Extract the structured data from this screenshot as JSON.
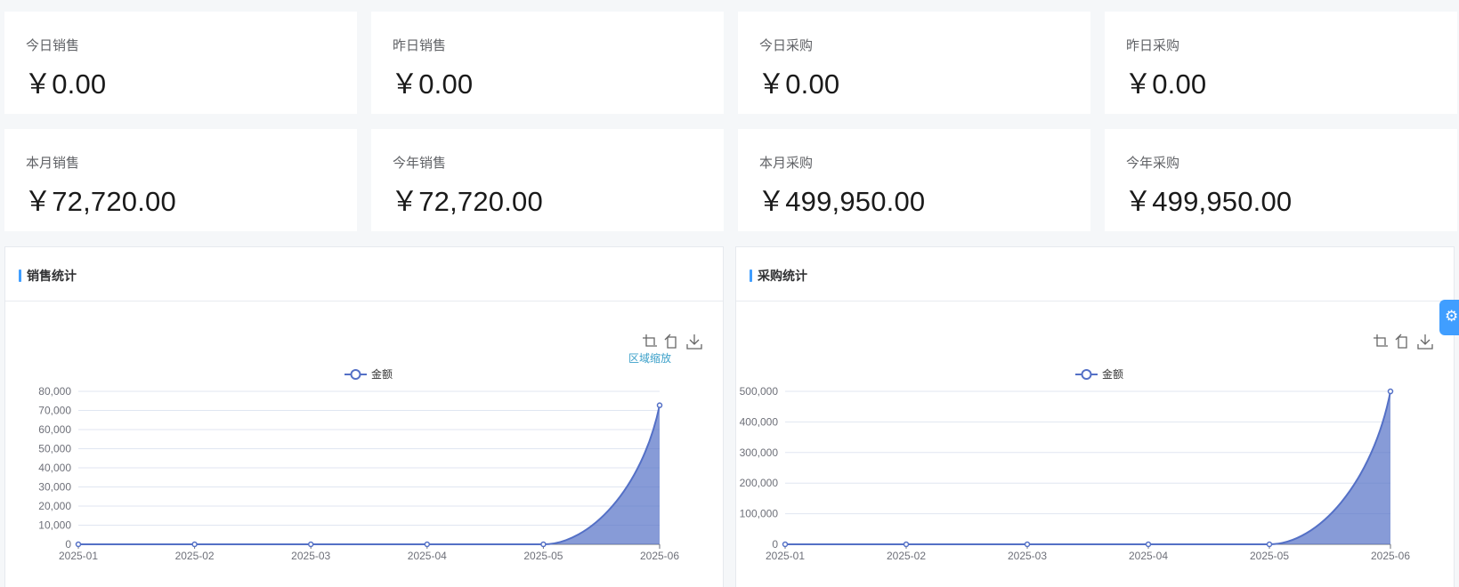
{
  "stats": [
    {
      "label": "今日销售",
      "value": "￥0.00"
    },
    {
      "label": "昨日销售",
      "value": "￥0.00"
    },
    {
      "label": "今日采购",
      "value": "￥0.00"
    },
    {
      "label": "昨日采购",
      "value": "￥0.00"
    },
    {
      "label": "本月销售",
      "value": "￥72,720.00"
    },
    {
      "label": "今年销售",
      "value": "￥72,720.00"
    },
    {
      "label": "本月采购",
      "value": "￥499,950.00"
    },
    {
      "label": "今年采购",
      "value": "￥499,950.00"
    }
  ],
  "sales_card": {
    "title": "销售统计"
  },
  "purchase_card": {
    "title": "采购统计"
  },
  "toolbox": {
    "zoom_label": "区域缩放",
    "icons": [
      "zoom-select-icon",
      "zoom-reset-icon",
      "save-image-icon"
    ]
  },
  "settings": {
    "icon": "gear-icon"
  },
  "colors": {
    "series": "#5470c6",
    "accent": "#409eff"
  },
  "chart_data": [
    {
      "type": "area",
      "title": "销售统计",
      "legend": [
        "金额"
      ],
      "categories": [
        "2025-01",
        "2025-02",
        "2025-03",
        "2025-04",
        "2025-05",
        "2025-06"
      ],
      "series": [
        {
          "name": "金额",
          "values": [
            0,
            0,
            0,
            0,
            0,
            72720
          ]
        }
      ],
      "yticks": [
        "0",
        "10,000",
        "20,000",
        "30,000",
        "40,000",
        "50,000",
        "60,000",
        "70,000",
        "80,000"
      ],
      "ylim": [
        0,
        80000
      ],
      "smooth": true,
      "grid": true
    },
    {
      "type": "area",
      "title": "采购统计",
      "legend": [
        "金额"
      ],
      "categories": [
        "2025-01",
        "2025-02",
        "2025-03",
        "2025-04",
        "2025-05",
        "2025-06"
      ],
      "series": [
        {
          "name": "金额",
          "values": [
            0,
            0,
            0,
            0,
            0,
            499950
          ]
        }
      ],
      "yticks": [
        "0",
        "100,000",
        "200,000",
        "300,000",
        "400,000",
        "500,000"
      ],
      "ylim": [
        0,
        500000
      ],
      "smooth": true,
      "grid": true
    }
  ]
}
